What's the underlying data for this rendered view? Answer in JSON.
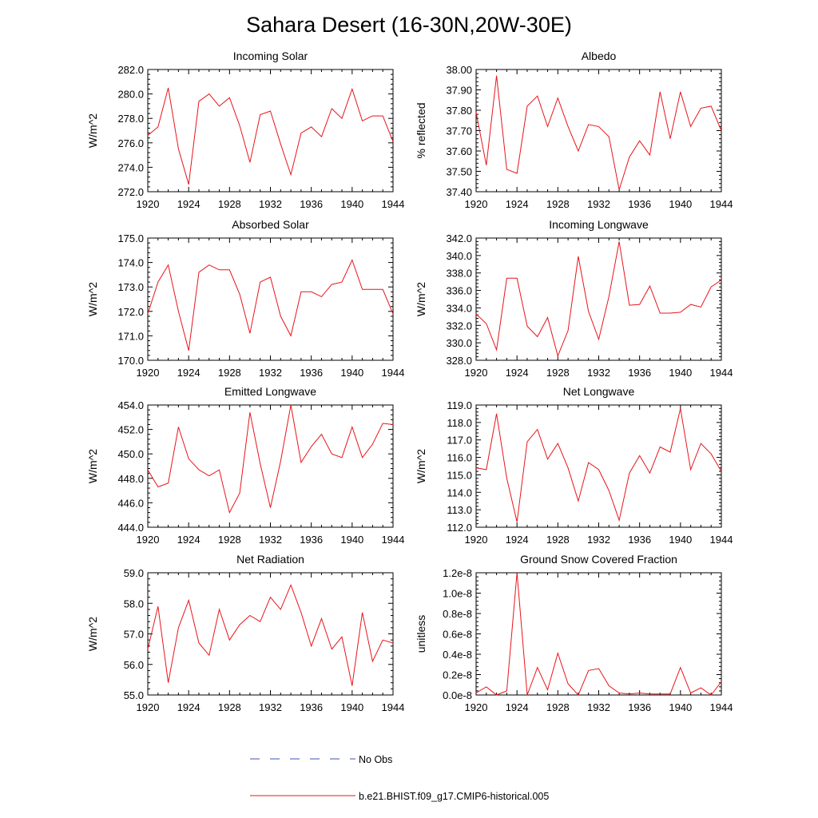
{
  "title": "Sahara Desert (16-30N,20W-30E)",
  "colors": {
    "model": "#e8141a",
    "obs": "#3f4fb8",
    "axis": "#000000"
  },
  "legend": {
    "obs_label": "No Obs",
    "model_label": "b.e21.BHIST.f09_g17.CMIP6-historical.005"
  },
  "chart_data": [
    {
      "type": "line",
      "title": "Incoming Solar",
      "xlabel": "",
      "ylabel": "W/m^2",
      "xlim": [
        1920,
        1944
      ],
      "ylim": [
        272.0,
        282.0
      ],
      "yticks": [
        272.0,
        274.0,
        276.0,
        278.0,
        280.0,
        282.0
      ],
      "ytick_labels": [
        "272.0",
        "274.0",
        "276.0",
        "278.0",
        "280.0",
        "282.0"
      ],
      "xticks": [
        1920,
        1924,
        1928,
        1932,
        1936,
        1940,
        1944
      ],
      "xtick_labels": [
        "1920",
        "1924",
        "1928",
        "1932",
        "1936",
        "1940",
        "1944"
      ],
      "series": [
        {
          "name": "b.e21.BHIST.f09_g17.CMIP6-historical.005",
          "x": [
            1920,
            1921,
            1922,
            1923,
            1924,
            1925,
            1926,
            1927,
            1928,
            1929,
            1930,
            1931,
            1932,
            1933,
            1934,
            1935,
            1936,
            1937,
            1938,
            1939,
            1940,
            1941,
            1942,
            1943,
            1944
          ],
          "values": [
            276.6,
            277.3,
            280.5,
            275.5,
            272.6,
            279.4,
            280.0,
            279.0,
            279.7,
            277.4,
            274.4,
            278.3,
            278.6,
            275.9,
            273.4,
            276.8,
            277.3,
            276.5,
            278.8,
            278.0,
            280.4,
            277.8,
            278.2,
            278.2,
            276.1
          ]
        }
      ]
    },
    {
      "type": "line",
      "title": "Albedo",
      "xlabel": "",
      "ylabel": "% reflected",
      "xlim": [
        1920,
        1944
      ],
      "ylim": [
        37.4,
        38.0
      ],
      "yticks": [
        37.4,
        37.5,
        37.6,
        37.7,
        37.8,
        37.9,
        38.0
      ],
      "ytick_labels": [
        "37.40",
        "37.50",
        "37.60",
        "37.70",
        "37.80",
        "37.90",
        "38.00"
      ],
      "xticks": [
        1920,
        1924,
        1928,
        1932,
        1936,
        1940,
        1944
      ],
      "xtick_labels": [
        "1920",
        "1924",
        "1928",
        "1932",
        "1936",
        "1940",
        "1944"
      ],
      "series": [
        {
          "name": "b.e21.BHIST.f09_g17.CMIP6-historical.005",
          "x": [
            1920,
            1921,
            1922,
            1923,
            1924,
            1925,
            1926,
            1927,
            1928,
            1929,
            1930,
            1931,
            1932,
            1933,
            1934,
            1935,
            1936,
            1937,
            1938,
            1939,
            1940,
            1941,
            1942,
            1943,
            1944
          ],
          "values": [
            37.79,
            37.53,
            37.97,
            37.51,
            37.49,
            37.82,
            37.87,
            37.72,
            37.86,
            37.72,
            37.6,
            37.73,
            37.72,
            37.67,
            37.41,
            37.57,
            37.65,
            37.58,
            37.89,
            37.66,
            37.89,
            37.72,
            37.81,
            37.82,
            37.7
          ]
        }
      ]
    },
    {
      "type": "line",
      "title": "Absorbed Solar",
      "xlabel": "",
      "ylabel": "W/m^2",
      "xlim": [
        1920,
        1944
      ],
      "ylim": [
        170.0,
        175.0
      ],
      "yticks": [
        170.0,
        171.0,
        172.0,
        173.0,
        174.0,
        175.0
      ],
      "ytick_labels": [
        "170.0",
        "171.0",
        "172.0",
        "173.0",
        "174.0",
        "175.0"
      ],
      "xticks": [
        1920,
        1924,
        1928,
        1932,
        1936,
        1940,
        1944
      ],
      "xtick_labels": [
        "1920",
        "1924",
        "1928",
        "1932",
        "1936",
        "1940",
        "1944"
      ],
      "series": [
        {
          "name": "b.e21.BHIST.f09_g17.CMIP6-historical.005",
          "x": [
            1920,
            1921,
            1922,
            1923,
            1924,
            1925,
            1926,
            1927,
            1928,
            1929,
            1930,
            1931,
            1932,
            1933,
            1934,
            1935,
            1936,
            1937,
            1938,
            1939,
            1940,
            1941,
            1942,
            1943,
            1944
          ],
          "values": [
            171.9,
            173.2,
            173.9,
            172.0,
            170.4,
            173.6,
            173.9,
            173.7,
            173.7,
            172.7,
            171.1,
            173.2,
            173.4,
            171.8,
            171.0,
            172.8,
            172.8,
            172.6,
            173.1,
            173.2,
            174.1,
            172.9,
            172.9,
            172.9,
            171.9
          ]
        }
      ]
    },
    {
      "type": "line",
      "title": "Incoming Longwave",
      "xlabel": "",
      "ylabel": "W/m^2",
      "xlim": [
        1920,
        1944
      ],
      "ylim": [
        328.0,
        342.0
      ],
      "yticks": [
        328.0,
        330.0,
        332.0,
        334.0,
        336.0,
        338.0,
        340.0,
        342.0
      ],
      "ytick_labels": [
        "328.0",
        "330.0",
        "332.0",
        "334.0",
        "336.0",
        "338.0",
        "340.0",
        "342.0"
      ],
      "xticks": [
        1920,
        1924,
        1928,
        1932,
        1936,
        1940,
        1944
      ],
      "xtick_labels": [
        "1920",
        "1924",
        "1928",
        "1932",
        "1936",
        "1940",
        "1944"
      ],
      "series": [
        {
          "name": "b.e21.BHIST.f09_g17.CMIP6-historical.005",
          "x": [
            1920,
            1921,
            1922,
            1923,
            1924,
            1925,
            1926,
            1927,
            1928,
            1929,
            1930,
            1931,
            1932,
            1933,
            1934,
            1935,
            1936,
            1937,
            1938,
            1939,
            1940,
            1941,
            1942,
            1943,
            1944
          ],
          "values": [
            333.3,
            332.2,
            329.2,
            337.4,
            337.4,
            331.9,
            330.7,
            332.9,
            328.5,
            331.4,
            339.9,
            333.6,
            330.4,
            335.3,
            341.6,
            334.3,
            334.4,
            336.5,
            333.4,
            333.4,
            333.5,
            334.4,
            334.1,
            336.4,
            337.2
          ]
        }
      ]
    },
    {
      "type": "line",
      "title": "Emitted Longwave",
      "xlabel": "",
      "ylabel": "W/m^2",
      "xlim": [
        1920,
        1944
      ],
      "ylim": [
        444.0,
        454.0
      ],
      "yticks": [
        444.0,
        446.0,
        448.0,
        450.0,
        452.0,
        454.0
      ],
      "ytick_labels": [
        "444.0",
        "446.0",
        "448.0",
        "450.0",
        "452.0",
        "454.0"
      ],
      "xticks": [
        1920,
        1924,
        1928,
        1932,
        1936,
        1940,
        1944
      ],
      "xtick_labels": [
        "1920",
        "1924",
        "1928",
        "1932",
        "1936",
        "1940",
        "1944"
      ],
      "series": [
        {
          "name": "b.e21.BHIST.f09_g17.CMIP6-historical.005",
          "x": [
            1920,
            1921,
            1922,
            1923,
            1924,
            1925,
            1926,
            1927,
            1928,
            1929,
            1930,
            1931,
            1932,
            1933,
            1934,
            1935,
            1936,
            1937,
            1938,
            1939,
            1940,
            1941,
            1942,
            1943,
            1944
          ],
          "values": [
            448.7,
            447.3,
            447.6,
            452.2,
            449.6,
            448.7,
            448.2,
            448.7,
            445.2,
            446.8,
            453.4,
            449.2,
            445.6,
            449.4,
            454.0,
            449.3,
            450.6,
            451.6,
            450.0,
            449.7,
            452.2,
            449.7,
            450.8,
            452.5,
            452.4
          ]
        }
      ]
    },
    {
      "type": "line",
      "title": "Net Longwave",
      "xlabel": "",
      "ylabel": "W/m^2",
      "xlim": [
        1920,
        1944
      ],
      "ylim": [
        112.0,
        119.0
      ],
      "yticks": [
        112.0,
        113.0,
        114.0,
        115.0,
        116.0,
        117.0,
        118.0,
        119.0
      ],
      "ytick_labels": [
        "112.0",
        "113.0",
        "114.0",
        "115.0",
        "116.0",
        "117.0",
        "118.0",
        "119.0"
      ],
      "xticks": [
        1920,
        1924,
        1928,
        1932,
        1936,
        1940,
        1944
      ],
      "xtick_labels": [
        "1920",
        "1924",
        "1928",
        "1932",
        "1936",
        "1940",
        "1944"
      ],
      "series": [
        {
          "name": "b.e21.BHIST.f09_g17.CMIP6-historical.005",
          "x": [
            1920,
            1921,
            1922,
            1923,
            1924,
            1925,
            1926,
            1927,
            1928,
            1929,
            1930,
            1931,
            1932,
            1933,
            1934,
            1935,
            1936,
            1937,
            1938,
            1939,
            1940,
            1941,
            1942,
            1943,
            1944
          ],
          "values": [
            115.4,
            115.3,
            118.5,
            114.8,
            112.3,
            116.9,
            117.6,
            115.9,
            116.8,
            115.4,
            113.5,
            115.7,
            115.3,
            114.1,
            112.4,
            115.1,
            116.1,
            115.1,
            116.6,
            116.3,
            118.8,
            115.3,
            116.8,
            116.2,
            115.2
          ]
        }
      ]
    },
    {
      "type": "line",
      "title": "Net Radiation",
      "xlabel": "",
      "ylabel": "W/m^2",
      "xlim": [
        1920,
        1944
      ],
      "ylim": [
        55.0,
        59.0
      ],
      "yticks": [
        55.0,
        56.0,
        57.0,
        58.0,
        59.0
      ],
      "ytick_labels": [
        "55.0",
        "56.0",
        "57.0",
        "58.0",
        "59.0"
      ],
      "xticks": [
        1920,
        1924,
        1928,
        1932,
        1936,
        1940,
        1944
      ],
      "xtick_labels": [
        "1920",
        "1924",
        "1928",
        "1932",
        "1936",
        "1940",
        "1944"
      ],
      "series": [
        {
          "name": "b.e21.BHIST.f09_g17.CMIP6-historical.005",
          "x": [
            1920,
            1921,
            1922,
            1923,
            1924,
            1925,
            1926,
            1927,
            1928,
            1929,
            1930,
            1931,
            1932,
            1933,
            1934,
            1935,
            1936,
            1937,
            1938,
            1939,
            1940,
            1941,
            1942,
            1943,
            1944
          ],
          "values": [
            56.5,
            57.9,
            55.4,
            57.2,
            58.1,
            56.7,
            56.3,
            57.8,
            56.8,
            57.3,
            57.6,
            57.4,
            58.2,
            57.8,
            58.6,
            57.7,
            56.6,
            57.5,
            56.5,
            56.9,
            55.3,
            57.7,
            56.1,
            56.8,
            56.7
          ]
        }
      ]
    },
    {
      "type": "line",
      "title": "Ground Snow Covered Fraction",
      "xlabel": "",
      "ylabel": "unitless",
      "xlim": [
        1920,
        1944
      ],
      "ylim": [
        0.0,
        1.2e-08
      ],
      "yticks": [
        0.0,
        2e-09,
        4e-09,
        6e-09,
        8e-09,
        1e-08,
        1.2e-08
      ],
      "ytick_labels": [
        "0.0e-8",
        "0.2e-8",
        "0.4e-8",
        "0.6e-8",
        "0.8e-8",
        "1.0e-8",
        "1.2e-8"
      ],
      "xticks": [
        1920,
        1924,
        1928,
        1932,
        1936,
        1940,
        1944
      ],
      "xtick_labels": [
        "1920",
        "1924",
        "1928",
        "1932",
        "1936",
        "1940",
        "1944"
      ],
      "series": [
        {
          "name": "b.e21.BHIST.f09_g17.CMIP6-historical.005",
          "x": [
            1920,
            1921,
            1922,
            1923,
            1924,
            1925,
            1926,
            1927,
            1928,
            1929,
            1930,
            1931,
            1932,
            1933,
            1934,
            1935,
            1936,
            1937,
            1938,
            1939,
            1940,
            1941,
            1942,
            1943,
            1944
          ],
          "values": [
            2e-10,
            8e-10,
            0.0,
            4e-10,
            1.2e-08,
            0.0,
            2.7e-09,
            5e-10,
            4.1e-09,
            1.1e-09,
            0.0,
            2.4e-09,
            2.6e-09,
            9e-10,
            2e-10,
            1e-10,
            2e-10,
            1e-10,
            1e-10,
            1e-10,
            2.7e-09,
            2e-10,
            7e-10,
            0.0,
            1.3e-09
          ]
        }
      ]
    }
  ]
}
